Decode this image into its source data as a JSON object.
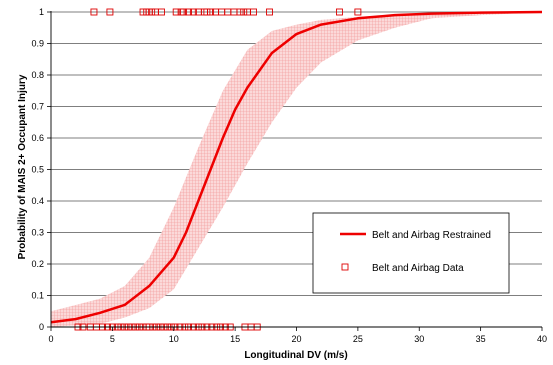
{
  "chart_data": {
    "type": "scatter",
    "title": "",
    "xlabel": "Longitudinal DV (m/s)",
    "ylabel": "Probability of MAIS 2+ Occupant Injury",
    "xlim": [
      0,
      40
    ],
    "ylim": [
      0,
      1
    ],
    "x_ticks": [
      "0",
      "5",
      "10",
      "15",
      "20",
      "25",
      "30",
      "35",
      "40"
    ],
    "y_ticks": [
      "0",
      "0.1",
      "0.2",
      "0.3",
      "0.4",
      "0.5",
      "0.6",
      "0.7",
      "0.8",
      "0.9",
      "1"
    ],
    "grid": "horizontal",
    "legend_position": "lower-right",
    "colors": {
      "curve": "#ee0000",
      "band": "#f4a0a0",
      "marker": "#dd0000"
    },
    "series": [
      {
        "name": "Belt and Airbag Restrained",
        "kind": "logistic-curve",
        "x": [
          0,
          2,
          4,
          6,
          8,
          10,
          11,
          12,
          13,
          14,
          15,
          16,
          18,
          20,
          22,
          25,
          28,
          31,
          35,
          40
        ],
        "y": [
          0.015,
          0.025,
          0.045,
          0.07,
          0.13,
          0.22,
          0.3,
          0.4,
          0.5,
          0.6,
          0.69,
          0.76,
          0.87,
          0.93,
          0.96,
          0.98,
          0.99,
          0.995,
          0.998,
          1.0
        ]
      },
      {
        "name": "Belt and Airbag Data",
        "kind": "binary-observations",
        "x_injured": [
          3.5,
          4.8,
          7.5,
          7.8,
          8.0,
          8.2,
          8.5,
          9.0,
          10.2,
          10.6,
          10.8,
          11.2,
          11.6,
          12.0,
          12.5,
          12.7,
          13.0,
          13.4,
          13.9,
          14.4,
          14.9,
          15.4,
          15.7,
          16.0,
          16.5,
          17.8,
          23.5,
          25.0
        ],
        "x_uninjured": [
          2.2,
          2.6,
          3.2,
          3.7,
          4.2,
          4.6,
          5.0,
          5.4,
          5.7,
          6.0,
          6.3,
          6.6,
          6.9,
          7.2,
          7.5,
          7.8,
          8.0,
          8.3,
          8.6,
          8.9,
          9.2,
          9.5,
          9.8,
          10.1,
          10.5,
          10.9,
          11.2,
          11.6,
          12.0,
          12.3,
          12.7,
          13.1,
          13.5,
          13.8,
          14.2,
          14.6,
          15.8,
          16.3,
          16.8
        ]
      }
    ],
    "band": {
      "name": "confidence band",
      "x": [
        0,
        2,
        4,
        6,
        8,
        10,
        12,
        14,
        16,
        18,
        20,
        22,
        25,
        28,
        31,
        35,
        40
      ],
      "lower": [
        0.0,
        0.005,
        0.01,
        0.03,
        0.06,
        0.12,
        0.25,
        0.38,
        0.52,
        0.65,
        0.76,
        0.84,
        0.91,
        0.95,
        0.98,
        0.99,
        1.0
      ],
      "upper": [
        0.05,
        0.07,
        0.09,
        0.13,
        0.22,
        0.38,
        0.57,
        0.75,
        0.88,
        0.94,
        0.96,
        0.975,
        0.985,
        0.99,
        0.995,
        0.998,
        1.0
      ]
    }
  }
}
